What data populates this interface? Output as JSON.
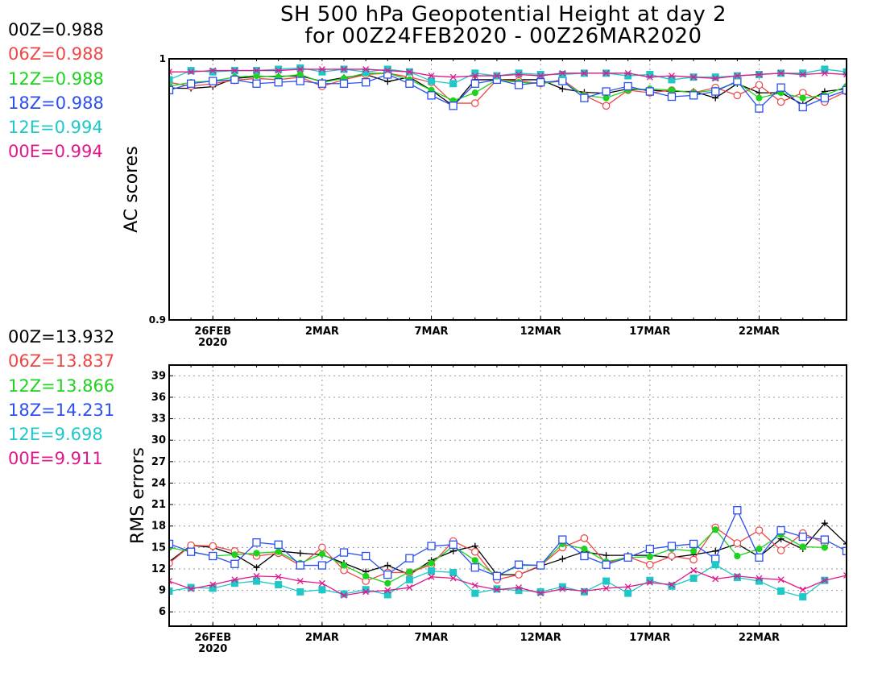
{
  "chart_title": {
    "line1": "SH 500 hPa Geopotential Height at day 2",
    "line2": "for 00Z24FEB2020 - 00Z26MAR2020"
  },
  "legend_ac": [
    {
      "text": "00Z=0.988",
      "color": "#000000"
    },
    {
      "text": "06Z=0.988",
      "color": "#f04545"
    },
    {
      "text": "12Z=0.988",
      "color": "#1ed21e"
    },
    {
      "text": "18Z=0.988",
      "color": "#2b4ff0"
    },
    {
      "text": "12E=0.994",
      "color": "#1ec8c8"
    },
    {
      "text": "00E=0.994",
      "color": "#e0188c"
    }
  ],
  "legend_rms": [
    {
      "text": "00Z=13.932",
      "color": "#000000"
    },
    {
      "text": "06Z=13.837",
      "color": "#f04545"
    },
    {
      "text": "12Z=13.866",
      "color": "#1ed21e"
    },
    {
      "text": "18Z=14.231",
      "color": "#2b4ff0"
    },
    {
      "text": "12E=9.698",
      "color": "#1ec8c8"
    },
    {
      "text": "00E=9.911",
      "color": "#e0188c"
    }
  ],
  "chart_data": [
    {
      "type": "line",
      "ylabel": "AC scores",
      "ylim": [
        0.9,
        1.0
      ],
      "yticks": [
        0.9,
        1.0
      ],
      "ytick_labels": [
        "0.9",
        "1"
      ],
      "xlim": [
        0,
        31
      ],
      "xticks": [
        2,
        7,
        12,
        17,
        22,
        27
      ],
      "xtick_labels": [
        "26FEB",
        "2MAR",
        "7MAR",
        "12MAR",
        "17MAR",
        "22MAR"
      ],
      "xtick_year": "2020",
      "grid": true,
      "series": [
        {
          "name": "00Z",
          "color": "#000000",
          "marker": "plus",
          "values": [
            0.9888,
            0.9887,
            0.9893,
            0.9925,
            0.9932,
            0.9933,
            0.9935,
            0.9913,
            0.9928,
            0.994,
            0.9913,
            0.993,
            0.988,
            0.982,
            0.992,
            0.992,
            0.992,
            0.992,
            0.9885,
            0.9872,
            0.9868,
            0.9885,
            0.988,
            0.9875,
            0.9875,
            0.985,
            0.9905,
            0.987,
            0.987,
            0.9825,
            0.9875,
            0.9885
          ]
        },
        {
          "name": "06Z",
          "color": "#f04545",
          "marker": "circle",
          "values": [
            0.991,
            0.9895,
            0.9905,
            0.9918,
            0.9925,
            0.992,
            0.993,
            0.9895,
            0.992,
            0.994,
            0.9945,
            0.993,
            0.991,
            0.983,
            0.983,
            0.992,
            0.9915,
            0.9905,
            0.992,
            0.986,
            0.982,
            0.988,
            0.987,
            0.988,
            0.987,
            0.989,
            0.986,
            0.99,
            0.9835,
            0.987,
            0.9835,
            0.9875,
            0.989
          ]
        },
        {
          "name": "12Z",
          "color": "#1ed21e",
          "marker": "dot",
          "values": [
            0.9895,
            0.991,
            0.9915,
            0.993,
            0.9935,
            0.993,
            0.994,
            0.991,
            0.9925,
            0.9945,
            0.9945,
            0.992,
            0.988,
            0.984,
            0.987,
            0.992,
            0.991,
            0.9905,
            0.9915,
            0.986,
            0.985,
            0.988,
            0.9885,
            0.988,
            0.987,
            0.988,
            0.991,
            0.985,
            0.987,
            0.985,
            0.986,
            0.9895,
            0.9895
          ]
        },
        {
          "name": "18Z",
          "color": "#2b4ff0",
          "marker": "square",
          "values": [
            0.988,
            0.9905,
            0.9915,
            0.992,
            0.9905,
            0.991,
            0.9915,
            0.9905,
            0.9905,
            0.991,
            0.994,
            0.9905,
            0.986,
            0.982,
            0.9905,
            0.992,
            0.99,
            0.991,
            0.9915,
            0.985,
            0.9875,
            0.9895,
            0.9875,
            0.9855,
            0.986,
            0.9875,
            0.9915,
            0.981,
            0.989,
            0.9815,
            0.985,
            0.988,
            0.9905
          ]
        },
        {
          "name": "12E",
          "color": "#1ec8c8",
          "marker": "filled-square",
          "values": [
            0.992,
            0.9955,
            0.995,
            0.9955,
            0.9955,
            0.996,
            0.9965,
            0.995,
            0.996,
            0.995,
            0.996,
            0.995,
            0.9915,
            0.9905,
            0.9945,
            0.9935,
            0.9945,
            0.994,
            0.994,
            0.9945,
            0.9945,
            0.9935,
            0.994,
            0.992,
            0.993,
            0.993,
            0.9935,
            0.994,
            0.9945,
            0.9945,
            0.996,
            0.995,
            0.9945
          ]
        },
        {
          "name": "00E",
          "color": "#e0188c",
          "marker": "x",
          "values": [
            0.995,
            0.995,
            0.9955,
            0.9955,
            0.9955,
            0.9955,
            0.996,
            0.996,
            0.996,
            0.996,
            0.9955,
            0.995,
            0.9935,
            0.993,
            0.9935,
            0.9935,
            0.994,
            0.9935,
            0.9945,
            0.9945,
            0.9945,
            0.9945,
            0.993,
            0.9935,
            0.993,
            0.9925,
            0.9935,
            0.994,
            0.9945,
            0.994,
            0.9945,
            0.994,
            0.994
          ]
        }
      ]
    },
    {
      "type": "line",
      "ylabel": "RMS errors",
      "ylim": [
        4,
        40.5
      ],
      "yticks": [
        6,
        9,
        12,
        15,
        18,
        21,
        24,
        27,
        30,
        33,
        36,
        39
      ],
      "ytick_labels": [
        "6",
        "9",
        "12",
        "15",
        "18",
        "21",
        "24",
        "27",
        "30",
        "33",
        "36",
        "39"
      ],
      "xlim": [
        0,
        31
      ],
      "xticks": [
        2,
        7,
        12,
        17,
        22,
        27
      ],
      "xtick_labels": [
        "26FEB",
        "2MAR",
        "7MAR",
        "12MAR",
        "17MAR",
        "22MAR"
      ],
      "xtick_year": "2020",
      "grid": true,
      "series": [
        {
          "name": "00Z",
          "color": "#000000",
          "marker": "plus",
          "values": [
            13.0,
            15.3,
            15.0,
            14.0,
            12.2,
            14.5,
            14.2,
            14.0,
            12.8,
            11.6,
            12.5,
            11.2,
            13.2,
            14.5,
            15.2,
            11.2,
            11.2,
            12.4,
            13.4,
            14.4,
            13.9,
            13.9,
            13.9,
            13.6,
            14.0,
            14.5,
            15.5,
            13.7,
            16.2,
            14.8,
            18.4,
            15.5,
            16.6
          ]
        },
        {
          "name": "06Z",
          "color": "#f04545",
          "marker": "circle",
          "values": [
            12.8,
            15.3,
            15.2,
            14.5,
            13.8,
            14.2,
            12.5,
            15.0,
            11.8,
            10.3,
            11.5,
            11.5,
            12.6,
            15.9,
            14.4,
            10.5,
            11.2,
            12.5,
            15.0,
            16.3,
            12.8,
            13.7,
            12.6,
            13.8,
            13.3,
            17.8,
            15.6,
            17.4,
            14.6,
            17.0,
            15.6
          ]
        },
        {
          "name": "12Z",
          "color": "#1ed21e",
          "marker": "dot",
          "values": [
            15.0,
            14.4,
            13.8,
            14.0,
            14.2,
            14.4,
            12.8,
            14.1,
            12.5,
            11.0,
            10.0,
            11.6,
            12.8,
            15.2,
            13.2,
            11.0,
            12.5,
            12.5,
            15.5,
            14.8,
            13.0,
            13.6,
            13.7,
            14.8,
            14.5,
            17.5,
            13.8,
            14.8,
            16.8,
            15.1,
            15.0
          ]
        },
        {
          "name": "18Z",
          "color": "#2b4ff0",
          "marker": "square",
          "values": [
            15.5,
            14.4,
            13.8,
            12.7,
            15.7,
            15.4,
            12.5,
            12.5,
            14.3,
            13.8,
            11.2,
            13.5,
            15.2,
            15.4,
            12.2,
            11.0,
            12.6,
            12.5,
            16.1,
            13.8,
            12.6,
            13.6,
            14.8,
            15.2,
            15.5,
            13.4,
            20.2,
            13.6,
            17.4,
            16.5,
            16.1,
            14.5
          ]
        },
        {
          "name": "12E",
          "color": "#1ec8c8",
          "marker": "filled-square",
          "values": [
            8.9,
            9.4,
            9.3,
            10.0,
            10.3,
            9.8,
            8.8,
            9.1,
            8.5,
            9.1,
            8.4,
            10.5,
            11.7,
            11.5,
            8.6,
            9.2,
            9.0,
            8.8,
            9.5,
            8.8,
            10.3,
            8.6,
            10.4,
            9.6,
            10.7,
            12.6,
            10.8,
            10.3,
            8.9,
            8.1,
            10.4
          ]
        },
        {
          "name": "00E",
          "color": "#e0188c",
          "marker": "x",
          "values": [
            10.3,
            9.2,
            9.8,
            10.5,
            11.0,
            10.9,
            10.3,
            10.0,
            8.3,
            8.8,
            9.0,
            9.4,
            10.9,
            10.7,
            9.7,
            9.1,
            9.4,
            8.6,
            9.2,
            8.9,
            9.3,
            9.5,
            10.1,
            9.8,
            11.8,
            10.6,
            11.0,
            10.7,
            10.5,
            9.1,
            10.4,
            11.1
          ]
        }
      ]
    }
  ]
}
